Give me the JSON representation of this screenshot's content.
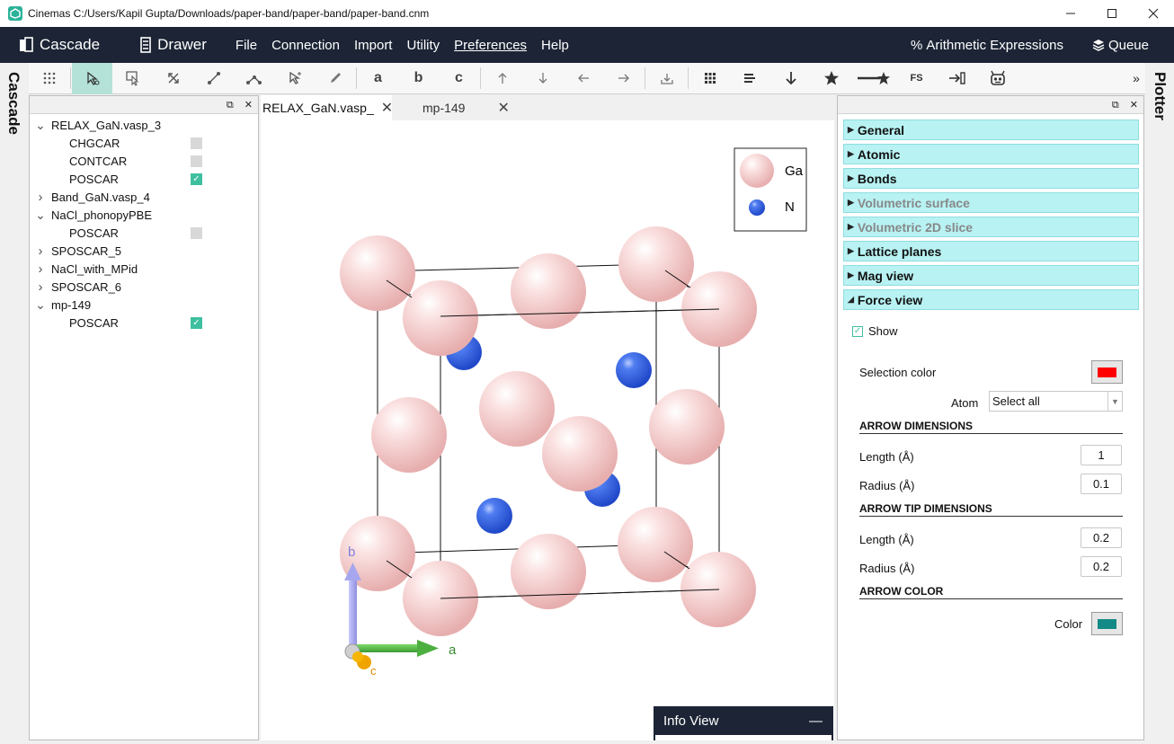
{
  "window": {
    "title": "Cinemas C:/Users/Kapil Gupta/Downloads/paper-band/paper-band/paper-band.cnm"
  },
  "menubar": {
    "apps": [
      {
        "label": "Cascade",
        "icon": "cascade-icon"
      },
      {
        "label": "Drawer",
        "icon": "drawer-icon"
      }
    ],
    "items": [
      "File",
      "Connection",
      "Import",
      "Utility",
      "Preferences",
      "Help"
    ],
    "right": [
      {
        "label": "Arithmetic Expressions",
        "icon": "percent-icon"
      },
      {
        "label": "Queue",
        "icon": "layers-icon"
      }
    ]
  },
  "side_labels": {
    "left": "Cascade",
    "right": "Plotter"
  },
  "toolbar": {
    "letters": [
      "a",
      "b",
      "c"
    ],
    "more": "»",
    "tools": [
      "grid-dots-icon",
      "select-pointer-icon",
      "select-box-icon",
      "expand-icon",
      "bond-line-icon",
      "angle-icon",
      "lasso-icon",
      "pencil-icon",
      "a-axis",
      "b-axis",
      "c-axis",
      "arrow-up-icon",
      "arrow-down-icon",
      "arrow-left-icon",
      "arrow-right-icon",
      "download-icon",
      "grid-icon",
      "list-icon",
      "arrow-down-bold-icon",
      "star-icon",
      "star-arrow-icon",
      "fs-icon",
      "import-icon",
      "robot-icon"
    ],
    "fs_label": "FS"
  },
  "tree": {
    "items": [
      {
        "label": "RELAX_GaN.vasp_3",
        "expanded": true,
        "children": [
          {
            "label": "CHGCAR",
            "checked": false
          },
          {
            "label": "CONTCAR",
            "checked": false
          },
          {
            "label": "POSCAR",
            "checked": true
          }
        ]
      },
      {
        "label": "Band_GaN.vasp_4",
        "expanded": false,
        "children": []
      },
      {
        "label": "NaCl_phonopyPBE",
        "expanded": true,
        "children": [
          {
            "label": "POSCAR",
            "checked": false
          }
        ]
      },
      {
        "label": "SPOSCAR_5",
        "expanded": false,
        "children": []
      },
      {
        "label": "NaCl_with_MPid",
        "expanded": false,
        "children": []
      },
      {
        "label": "SPOSCAR_6",
        "expanded": false,
        "children": []
      },
      {
        "label": "mp-149",
        "expanded": true,
        "children": [
          {
            "label": "POSCAR",
            "checked": true
          }
        ]
      }
    ]
  },
  "tabs": [
    {
      "label": "RELAX_GaN.vasp_",
      "active": true
    },
    {
      "label": "mp-149",
      "active": false
    }
  ],
  "viewer": {
    "legend": [
      {
        "label": "Ga",
        "color": "#f6c9c9"
      },
      {
        "label": "N",
        "color": "#2f62e8"
      }
    ],
    "axes": {
      "a": "a",
      "b": "b",
      "c": "c"
    }
  },
  "info_view": {
    "title": "Info View",
    "collapse": "—"
  },
  "right_panel": {
    "sections": [
      {
        "label": "General",
        "enabled": true,
        "open": false
      },
      {
        "label": "Atomic",
        "enabled": true,
        "open": false
      },
      {
        "label": "Bonds",
        "enabled": true,
        "open": false
      },
      {
        "label": "Volumetric surface",
        "enabled": false,
        "open": false
      },
      {
        "label": "Volumetric 2D slice",
        "enabled": false,
        "open": false
      },
      {
        "label": "Lattice planes",
        "enabled": true,
        "open": false
      },
      {
        "label": "Mag view",
        "enabled": true,
        "open": false
      },
      {
        "label": "Force view",
        "enabled": true,
        "open": true
      }
    ],
    "force_view": {
      "show_label": "Show",
      "show_checked": true,
      "selection_color_label": "Selection color",
      "selection_color": "#ff0000",
      "atom_label": "Atom",
      "atom_value": "Select all",
      "arrow_dimensions": "ARROW DIMENSIONS",
      "length_label": "Length (Å)",
      "radius_label": "Radius (Å)",
      "length": "1",
      "radius": "0.1",
      "tip_dimensions": "ARROW TIP DIMENSIONS",
      "tip_length_label": "Length (Å)",
      "tip_radius_label": "Radius (Å)",
      "tip_length": "0.2",
      "tip_radius": "0.2",
      "arrow_color": "ARROW COLOR",
      "color_label": "Color",
      "color": "#138a85"
    }
  },
  "panel_controls": {
    "float": "⧉",
    "close": "✕"
  }
}
